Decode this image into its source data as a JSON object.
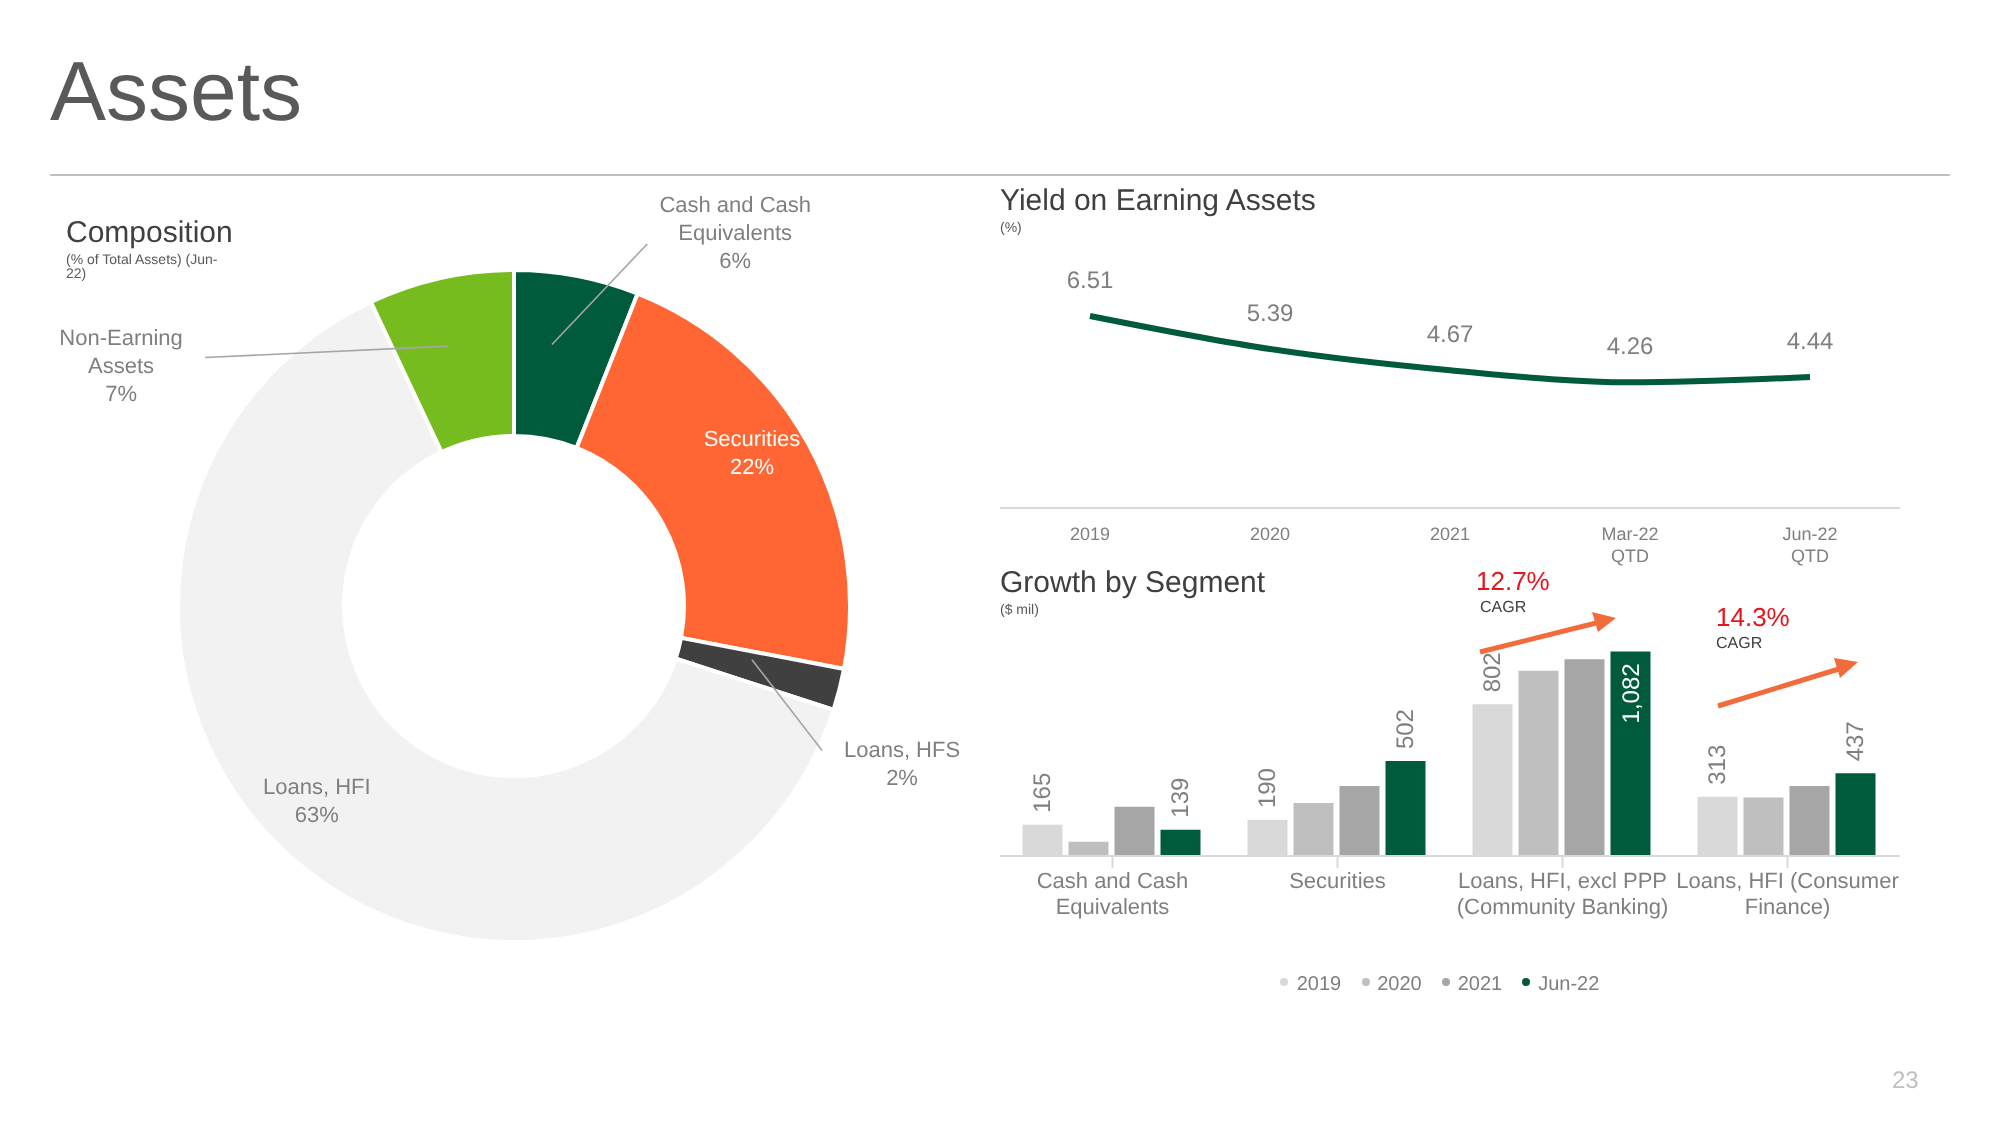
{
  "chart_data": [
    {
      "type": "donut",
      "title": "Composition",
      "subtitle": "(% of Total Assets) (Jun-22)",
      "annotations": [
        "Assets",
        "23"
      ],
      "categories": [
        "Cash and Cash Equivalents",
        "Securities",
        "Loans, HFS",
        "Loans, HFI",
        "Non-Earning Assets"
      ],
      "values": [
        6,
        22,
        2,
        63,
        7
      ],
      "value_labels": [
        "6%",
        "22%",
        "2%",
        "63%",
        "7%"
      ],
      "colors": [
        "#005a3c",
        "#ff6633",
        "#404040",
        "#f2f2f2",
        "#77bc1f"
      ],
      "data_labels": true,
      "legend": false
    },
    {
      "type": "line",
      "title": "Yield on Earning Assets",
      "subtitle": "(%)",
      "categories": [
        "2019",
        "2020",
        "2021",
        "Mar-22\nQTD",
        "Jun-22\nQTD"
      ],
      "series": [
        {
          "color": "#005a3c",
          "values": [
            6.51,
            5.39,
            4.67,
            4.26,
            4.44
          ]
        }
      ],
      "tick_labels": "x",
      "data_labels": true,
      "marker": "none",
      "grid": false,
      "legend": false
    },
    {
      "type": "bar",
      "title": "Growth by Segment",
      "subtitle": "($ mil)",
      "annotations": [
        "12.7%",
        "CAGR",
        "14.3%",
        "CAGR"
      ],
      "categories": [
        "Cash and Cash Equivalents",
        "Securities",
        "Loans, HFI, excl PPP (Community Banking)",
        "Loans, HFI (Consumer Finance)"
      ],
      "series": [
        {
          "name": "2019",
          "color": "#d9d9d9",
          "values": [
            165,
            190,
            802,
            313
          ],
          "value_labels": [
            "165",
            "190",
            "802",
            "313"
          ]
        },
        {
          "name": "2020",
          "color": "#bfbfbf",
          "values": [
            75,
            280,
            980,
            310
          ],
          "value_labels": [
            null,
            null,
            null,
            null
          ]
        },
        {
          "name": "2021",
          "color": "#a6a6a6",
          "values": [
            260,
            370,
            1040,
            370
          ],
          "value_labels": [
            null,
            null,
            null,
            null
          ]
        },
        {
          "name": "Jun-22",
          "color": "#005a3c",
          "values": [
            139,
            502,
            1082,
            437
          ],
          "value_labels": [
            "139",
            "502",
            "1,082",
            "437"
          ]
        }
      ],
      "ylim": [
        0,
        1100
      ],
      "tick_labels": "x",
      "legend": "bottom",
      "grid": false
    }
  ]
}
